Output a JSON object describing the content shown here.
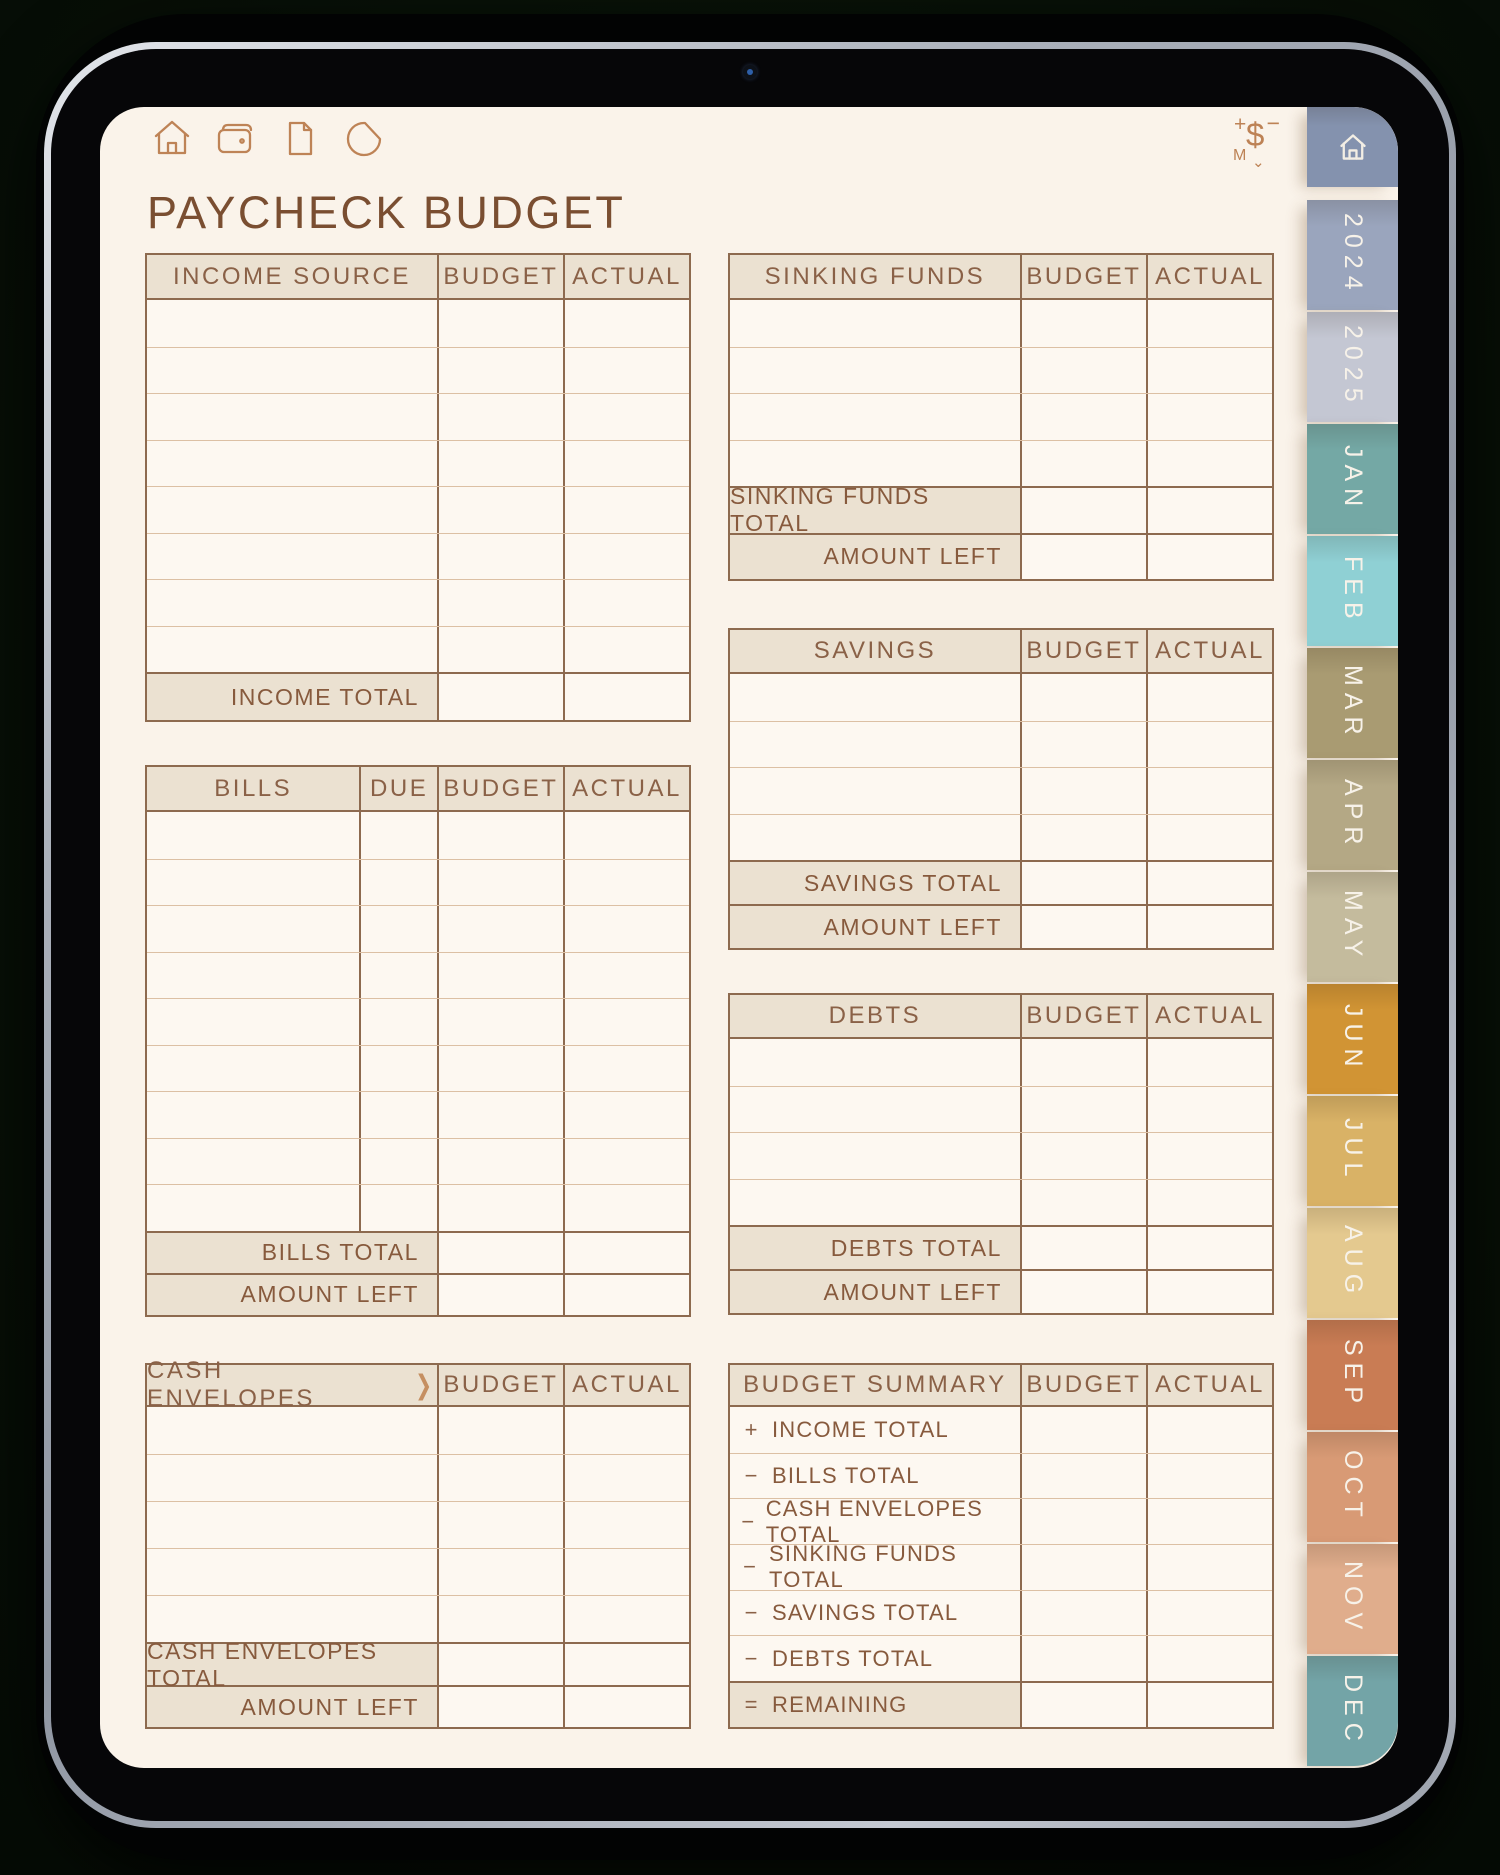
{
  "page": {
    "title": "PAYCHECK BUDGET"
  },
  "toolbar": {
    "icons": [
      "home-icon",
      "wallet-icon",
      "document-icon",
      "pie-chart-icon"
    ],
    "calculator": {
      "plus": "+",
      "minus": "−",
      "m": "M",
      "dollar": "$",
      "chevron": "⌄"
    }
  },
  "colors": {
    "page_background": "#faf3ea",
    "header_fill": "#ebe1d1",
    "border_dark": "#8d6a4f",
    "border_light": "#dcc0a4",
    "text_brown": "#7a4e31",
    "icon_copper": "#be8356"
  },
  "tables": {
    "income": {
      "columns": [
        "INCOME SOURCE",
        "BUDGET",
        "ACTUAL"
      ],
      "empty_rows": 8,
      "footer_rows": [
        {
          "label": "INCOME TOTAL"
        }
      ]
    },
    "bills": {
      "columns": [
        "BILLS",
        "DUE",
        "BUDGET",
        "ACTUAL"
      ],
      "empty_rows": 9,
      "footer_rows": [
        {
          "label": "BILLS TOTAL"
        },
        {
          "label": "AMOUNT LEFT"
        }
      ]
    },
    "cash_envelopes": {
      "columns": [
        "CASH ENVELOPES",
        "BUDGET",
        "ACTUAL"
      ],
      "chevron": "❯",
      "empty_rows": 5,
      "footer_rows": [
        {
          "label": "CASH ENVELOPES TOTAL"
        },
        {
          "label": "AMOUNT LEFT"
        }
      ]
    },
    "sinking_funds": {
      "columns": [
        "SINKING FUNDS",
        "BUDGET",
        "ACTUAL"
      ],
      "empty_rows": 4,
      "footer_rows": [
        {
          "label": "SINKING FUNDS TOTAL"
        },
        {
          "label": "AMOUNT LEFT"
        }
      ]
    },
    "savings": {
      "columns": [
        "SAVINGS",
        "BUDGET",
        "ACTUAL"
      ],
      "empty_rows": 4,
      "footer_rows": [
        {
          "label": "SAVINGS TOTAL"
        },
        {
          "label": "AMOUNT LEFT"
        }
      ]
    },
    "debts": {
      "columns": [
        "DEBTS",
        "BUDGET",
        "ACTUAL"
      ],
      "empty_rows": 4,
      "footer_rows": [
        {
          "label": "DEBTS TOTAL"
        },
        {
          "label": "AMOUNT LEFT"
        }
      ]
    },
    "budget_summary": {
      "columns": [
        "BUDGET SUMMARY",
        "BUDGET",
        "ACTUAL"
      ],
      "rows": [
        {
          "sign": "+",
          "label": "INCOME TOTAL"
        },
        {
          "sign": "−",
          "label": "BILLS TOTAL"
        },
        {
          "sign": "−",
          "label": "CASH ENVELOPES TOTAL"
        },
        {
          "sign": "−",
          "label": "SINKING FUNDS TOTAL"
        },
        {
          "sign": "−",
          "label": "SAVINGS TOTAL"
        },
        {
          "sign": "−",
          "label": "DEBTS TOTAL"
        },
        {
          "sign": "=",
          "label": "REMAINING",
          "highlight": true
        }
      ]
    }
  },
  "tabs": [
    {
      "id": "home",
      "label": "",
      "color": "#8492ae"
    },
    {
      "id": "2024",
      "label": "2024",
      "color": "#9aa5bd"
    },
    {
      "id": "2025",
      "label": "2025",
      "color": "#c4c7d3"
    },
    {
      "id": "jan",
      "label": "JAN",
      "color": "#74a8a5"
    },
    {
      "id": "feb",
      "label": "FEB",
      "color": "#8fd0d4"
    },
    {
      "id": "mar",
      "label": "MAR",
      "color": "#a99b72"
    },
    {
      "id": "apr",
      "label": "APR",
      "color": "#b4a885"
    },
    {
      "id": "may",
      "label": "MAY",
      "color": "#c4bb9d"
    },
    {
      "id": "jun",
      "label": "JUN",
      "color": "#d19434"
    },
    {
      "id": "jul",
      "label": "JUL",
      "color": "#d9b266"
    },
    {
      "id": "aug",
      "label": "AUG",
      "color": "#e4c98f"
    },
    {
      "id": "sep",
      "label": "SEP",
      "color": "#c97c54"
    },
    {
      "id": "oct",
      "label": "OCT",
      "color": "#d89a75"
    },
    {
      "id": "nov",
      "label": "NOV",
      "color": "#e0ad8c"
    },
    {
      "id": "dec",
      "label": "DEC",
      "color": "#73a4a7"
    }
  ]
}
